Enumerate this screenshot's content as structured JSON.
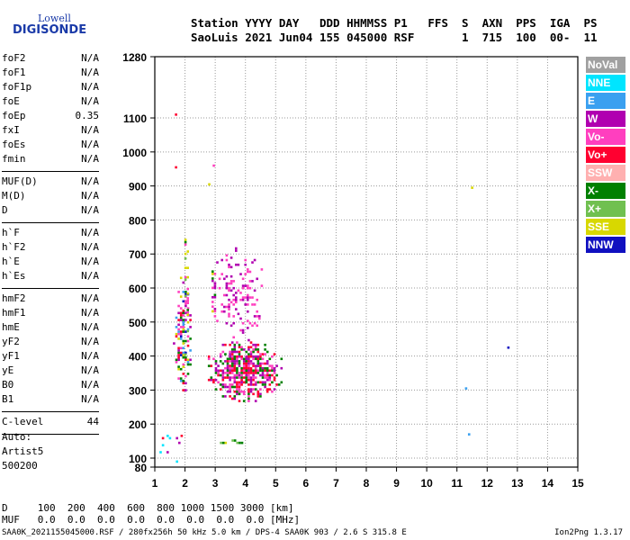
{
  "logo": {
    "line1": "Lowell",
    "line2": "DIGISONDE"
  },
  "header": {
    "line1": "Station YYYY DAY   DDD HHMMSS P1   FFS  S  AXN  PPS  IGA  PS",
    "line2": "SaoLuis 2021 Jun04 155 045000 RSF       1  715  100  00-  11"
  },
  "params": {
    "group1": [
      {
        "name": "foF2",
        "value": "N/A"
      },
      {
        "name": "foF1",
        "value": "N/A"
      },
      {
        "name": "foF1p",
        "value": "N/A"
      },
      {
        "name": "foE",
        "value": "N/A"
      },
      {
        "name": "foEp",
        "value": "0.35"
      },
      {
        "name": "fxI",
        "value": "N/A"
      },
      {
        "name": "foEs",
        "value": "N/A"
      },
      {
        "name": "fmin",
        "value": "N/A"
      }
    ],
    "group2": [
      {
        "name": "MUF(D)",
        "value": "N/A"
      },
      {
        "name": "M(D)",
        "value": "N/A"
      },
      {
        "name": "D",
        "value": "N/A"
      }
    ],
    "group3": [
      {
        "name": "h`F",
        "value": "N/A"
      },
      {
        "name": "h`F2",
        "value": "N/A"
      },
      {
        "name": "h`E",
        "value": "N/A"
      },
      {
        "name": "h`Es",
        "value": "N/A"
      }
    ],
    "group4": [
      {
        "name": "hmF2",
        "value": "N/A"
      },
      {
        "name": "hmF1",
        "value": "N/A"
      },
      {
        "name": "hmE",
        "value": "N/A"
      },
      {
        "name": "yF2",
        "value": "N/A"
      },
      {
        "name": "yF1",
        "value": "N/A"
      },
      {
        "name": "yE",
        "value": "N/A"
      },
      {
        "name": "B0",
        "value": "N/A"
      },
      {
        "name": "B1",
        "value": "N/A"
      }
    ],
    "group5": [
      {
        "name": "C-level",
        "value": "44"
      }
    ]
  },
  "auto": {
    "line1": "Auto:",
    "line2": "Artist5",
    "line3": "500200"
  },
  "legend": [
    {
      "label": "NoVal",
      "color": "#a0a0a0"
    },
    {
      "label": "NNE",
      "color": "#00e5ff"
    },
    {
      "label": "E",
      "color": "#3aa0f0"
    },
    {
      "label": "W",
      "color": "#b000b0"
    },
    {
      "label": "Vo-",
      "color": "#ff3fbf"
    },
    {
      "label": "Vo+",
      "color": "#ff0030"
    },
    {
      "label": "SSW",
      "color": "#ffb0b0"
    },
    {
      "label": "X-",
      "color": "#008000"
    },
    {
      "label": "X+",
      "color": "#70c050"
    },
    {
      "label": "SSE",
      "color": "#d8d800"
    },
    {
      "label": "NNW",
      "color": "#1010c0"
    }
  ],
  "dmuf": {
    "line1": "D     100  200  400  600  800 1000 1500 3000 [km]",
    "line2": "MUF   0.0  0.0  0.0  0.0  0.0  0.0  0.0  0.0 [MHz]"
  },
  "footer": {
    "left": "SAA0K_2021155045000.RSF / 280fx256h 50 kHz 5.0 km / DPS-4 SAA0K 903 / 2.6 S 315.8 E",
    "right": "Ion2Png 1.3.17"
  },
  "chart_data": {
    "type": "scatter",
    "title": "",
    "xlabel": "",
    "ylabel": "",
    "xlim": [
      1,
      15
    ],
    "ylim": [
      80,
      1280
    ],
    "xticks": [
      1,
      2,
      3,
      4,
      5,
      6,
      7,
      8,
      9,
      10,
      11,
      12,
      13,
      14,
      15
    ],
    "yticks": [
      80,
      100,
      200,
      300,
      400,
      500,
      600,
      700,
      800,
      900,
      1000,
      1100,
      1280
    ],
    "grid": true,
    "legend_position": "right",
    "clusters": [
      {
        "name": "F-trace main",
        "color_mix": [
          "W",
          "Vo-",
          "Vo+",
          "X-"
        ],
        "x_range": [
          2.6,
          5.2
        ],
        "y_range": [
          270,
          450
        ],
        "density": 0.85
      },
      {
        "name": "F-trace upper",
        "color_mix": [
          "W",
          "Vo-"
        ],
        "x_range": [
          2.8,
          4.6
        ],
        "y_range": [
          450,
          720
        ],
        "density": 0.25
      },
      {
        "name": "low-freq strip",
        "color_mix": [
          "W",
          "NNW",
          "Vo+",
          "E",
          "X-",
          "SSE",
          "Vo-"
        ],
        "x_range": [
          1.6,
          2.2
        ],
        "y_range": [
          270,
          640
        ],
        "density": 0.6
      },
      {
        "name": "low-freq echoes",
        "color_mix": [
          "SSE",
          "X+",
          "X-",
          "Vo-"
        ],
        "x_range": [
          1.9,
          2.1
        ],
        "y_range": [
          400,
          800
        ],
        "density": 0.35
      },
      {
        "name": "mid strip",
        "color_mix": [
          "SSE",
          "X-",
          "W",
          "Vo-"
        ],
        "x_range": [
          2.8,
          3.0
        ],
        "y_range": [
          500,
          700
        ],
        "density": 0.4
      },
      {
        "name": "Es band",
        "color_mix": [
          "SSE",
          "X+",
          "X-"
        ],
        "x_range": [
          3.0,
          4.3
        ],
        "y_range": [
          140,
          155
        ],
        "density": 0.5
      },
      {
        "name": "low echoes",
        "color_mix": [
          "E",
          "NNE",
          "Vo+",
          "W"
        ],
        "x_range": [
          1.0,
          2.0
        ],
        "y_range": [
          82,
          210
        ],
        "density": 0.1
      }
    ],
    "points": [
      {
        "x": 1.7,
        "y": 1110,
        "c": "Vo+"
      },
      {
        "x": 1.7,
        "y": 955,
        "c": "Vo+"
      },
      {
        "x": 2.95,
        "y": 960,
        "c": "Vo-"
      },
      {
        "x": 2.8,
        "y": 905,
        "c": "SSE"
      },
      {
        "x": 11.5,
        "y": 895,
        "c": "SSE"
      },
      {
        "x": 12.7,
        "y": 425,
        "c": "NNW"
      },
      {
        "x": 11.3,
        "y": 305,
        "c": "E"
      },
      {
        "x": 11.4,
        "y": 170,
        "c": "E"
      }
    ]
  }
}
